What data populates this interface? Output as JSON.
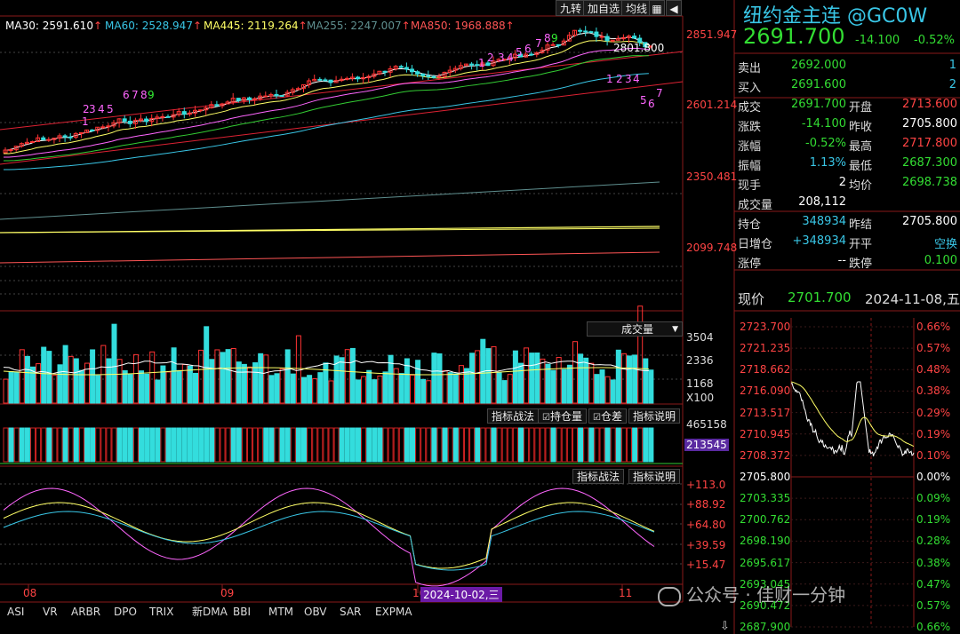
{
  "toolbar": {
    "btn1": "九转",
    "btn2": "加自选",
    "btn3": "均线"
  },
  "ma": {
    "ma30": {
      "label": "MA30: 2591.610",
      "color": "#ffffff"
    },
    "ma60": {
      "label": "MA60: 2528.947",
      "color": "#39c6e6"
    },
    "ma445": {
      "label": "MA445: 2119.264",
      "color": "#ffff66"
    },
    "ma255": {
      "label": "MA255: 2247.007",
      "color": "#5f8f8f"
    },
    "ma850": {
      "label": "MA850: 1968.888",
      "color": "#ff5555"
    }
  },
  "price_axis": {
    "p1": "2851.947",
    "p2": "2601.214",
    "p3": "2350.481",
    "p4": "2099.748"
  },
  "annotations": {
    "high": "2801.800",
    "seq_up": [
      "1",
      "2",
      "3",
      "4",
      "5",
      "6",
      "7",
      "8",
      "9"
    ],
    "seq_dn": [
      "1",
      "2",
      "3",
      "4",
      "5",
      "6",
      "7"
    ]
  },
  "volume": {
    "title": "成交量",
    "a1": "3504",
    "a2": "2336",
    "a3": "1168",
    "unit": "X100"
  },
  "oi": {
    "b1": "指标战法",
    "b2": "持仓量",
    "b3": "仓差",
    "b4": "指标说明",
    "v1": "465158",
    "v2": "213545"
  },
  "kdj": {
    "b1": "指标战法",
    "b2": "指标说明",
    "a1": "+113.0",
    "a2": "+88.92",
    "a3": "+64.80",
    "a4": "+39.59",
    "a5": "+15.47"
  },
  "xaxis": {
    "m08": "08",
    "m09": "09",
    "m10": "10",
    "m11": "11",
    "cursor": "2024-10-02,三"
  },
  "tabs": [
    "ASI",
    "VR",
    "ARBR",
    "DPO",
    "TRIX",
    "新DMA",
    "BBI",
    "MTM",
    "OBV",
    "SAR",
    "EXPMA"
  ],
  "quote": {
    "name": "纽约金主连 @GC0W",
    "price": "2691.700",
    "change": "-14.100",
    "pct": "-0.52%",
    "sell_label": "卖出",
    "sell": "2692.000",
    "sell_vol": "1",
    "buy_label": "买入",
    "buy": "2691.600",
    "buy_vol": "2",
    "rows": [
      {
        "l1": "成交",
        "v1": "2691.700",
        "l2": "开盘",
        "v2": "2713.600",
        "c1": "#33dd33",
        "c2": "#ff4444"
      },
      {
        "l1": "涨跌",
        "v1": "-14.100",
        "l2": "昨收",
        "v2": "2705.800",
        "c1": "#33dd33",
        "c2": "#ffffff"
      },
      {
        "l1": "涨幅",
        "v1": "-0.52%",
        "l2": "最高",
        "v2": "2717.800",
        "c1": "#33dd33",
        "c2": "#ff4444"
      },
      {
        "l1": "振幅",
        "v1": "1.13%",
        "l2": "最低",
        "v2": "2687.300",
        "c1": "#39c6e6",
        "c2": "#33dd33"
      },
      {
        "l1": "现手",
        "v1": "2",
        "l2": "均价",
        "v2": "2698.738",
        "c1": "#ffffff",
        "c2": "#33dd33"
      },
      {
        "l1": "成交量",
        "v1": "208,112",
        "l2": "",
        "v2": "",
        "c1": "#ffffff",
        "c2": "#ffffff"
      }
    ],
    "rows2": [
      {
        "l1": "持仓",
        "v1": "348934",
        "l2": "昨结",
        "v2": "2705.800",
        "c1": "#39c6e6",
        "c2": "#ffffff"
      },
      {
        "l1": "日增仓",
        "v1": "+348934",
        "l2": "开平",
        "v2": "空换",
        "c1": "#39c6e6",
        "c2": "#39c6e6"
      },
      {
        "l1": "涨停",
        "v1": "--",
        "l2": "跌停",
        "v2": "0.100",
        "c1": "#ffffff",
        "c2": "#33dd33"
      }
    ],
    "now_label": "现价",
    "now_price": "2701.700",
    "now_date": "2024-11-08,五"
  },
  "intraday": {
    "left": [
      "2723.700",
      "2721.235",
      "2718.662",
      "2716.090",
      "2713.517",
      "2710.945",
      "2708.372",
      "2705.800",
      "2703.335",
      "2700.762",
      "2698.190",
      "2695.617",
      "2693.045",
      "2690.472",
      "2687.900"
    ],
    "right": [
      "0.66%",
      "0.57%",
      "0.48%",
      "0.38%",
      "0.29%",
      "0.19%",
      "0.10%",
      "0.00%",
      "0.09%",
      "0.19%",
      "0.28%",
      "0.38%",
      "0.47%",
      "0.57%",
      "0.66%"
    ]
  },
  "watermark": "公众号 · 佳财一分钟"
}
